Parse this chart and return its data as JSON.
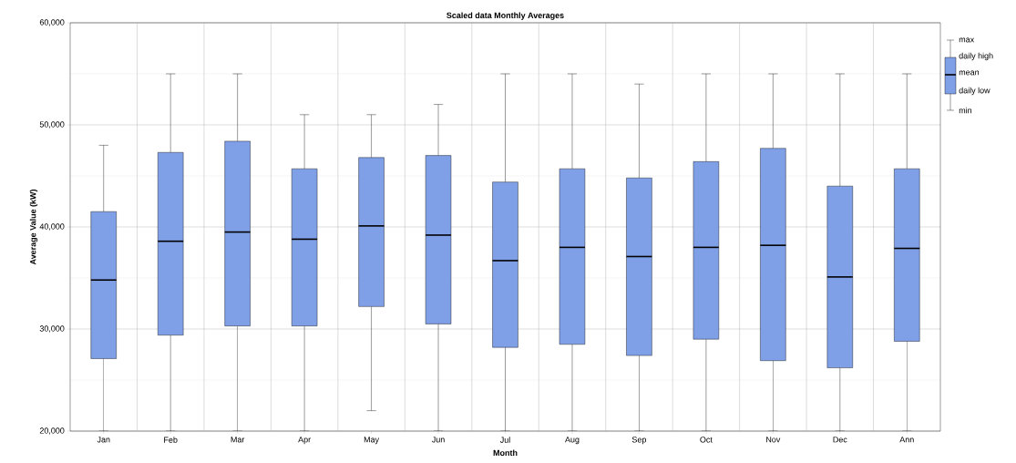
{
  "chart_data": {
    "type": "box",
    "title": "Scaled data Monthly Averages",
    "xlabel": "Month",
    "ylabel": "Average Value (kW)",
    "categories": [
      "Jan",
      "Feb",
      "Mar",
      "Apr",
      "May",
      "Jun",
      "Jul",
      "Aug",
      "Sep",
      "Oct",
      "Nov",
      "Dec",
      "Ann"
    ],
    "series": [
      {
        "color": "#7f9fe6",
        "boxes": [
          {
            "low": 20000,
            "q1": 27100,
            "median": 34800,
            "q3": 41500,
            "high": 48000
          },
          {
            "low": 20000,
            "q1": 29400,
            "median": 38600,
            "q3": 47300,
            "high": 55000
          },
          {
            "low": 20000,
            "q1": 30300,
            "median": 39500,
            "q3": 48400,
            "high": 55000
          },
          {
            "low": 20000,
            "q1": 30300,
            "median": 38800,
            "q3": 45700,
            "high": 51000
          },
          {
            "low": 22000,
            "q1": 32200,
            "median": 40100,
            "q3": 46800,
            "high": 51000
          },
          {
            "low": 20000,
            "q1": 30500,
            "median": 39200,
            "q3": 47000,
            "high": 52000
          },
          {
            "low": 20000,
            "q1": 28200,
            "median": 36700,
            "q3": 44400,
            "high": 55000
          },
          {
            "low": 20000,
            "q1": 28500,
            "median": 38000,
            "q3": 45700,
            "high": 55000
          },
          {
            "low": 20000,
            "q1": 27400,
            "median": 37100,
            "q3": 44800,
            "high": 54000
          },
          {
            "low": 20000,
            "q1": 29000,
            "median": 38000,
            "q3": 46400,
            "high": 55000
          },
          {
            "low": 20000,
            "q1": 26900,
            "median": 38200,
            "q3": 47700,
            "high": 55000
          },
          {
            "low": 20000,
            "q1": 26200,
            "median": 35100,
            "q3": 44000,
            "high": 55000
          },
          {
            "low": 20000,
            "q1": 28800,
            "median": 37900,
            "q3": 45700,
            "high": 55000
          }
        ]
      }
    ],
    "ylim": [
      20000,
      60000
    ],
    "yticks": [
      {
        "value": 20000,
        "label": "20,000"
      },
      {
        "value": 30000,
        "label": "30,000"
      },
      {
        "value": 40000,
        "label": "40,000"
      },
      {
        "value": 50000,
        "label": "50,000"
      },
      {
        "value": 60000,
        "label": "60,000"
      }
    ],
    "grid": true,
    "annotations": [
      "max",
      "daily high",
      "mean",
      "daily low",
      "min"
    ]
  }
}
